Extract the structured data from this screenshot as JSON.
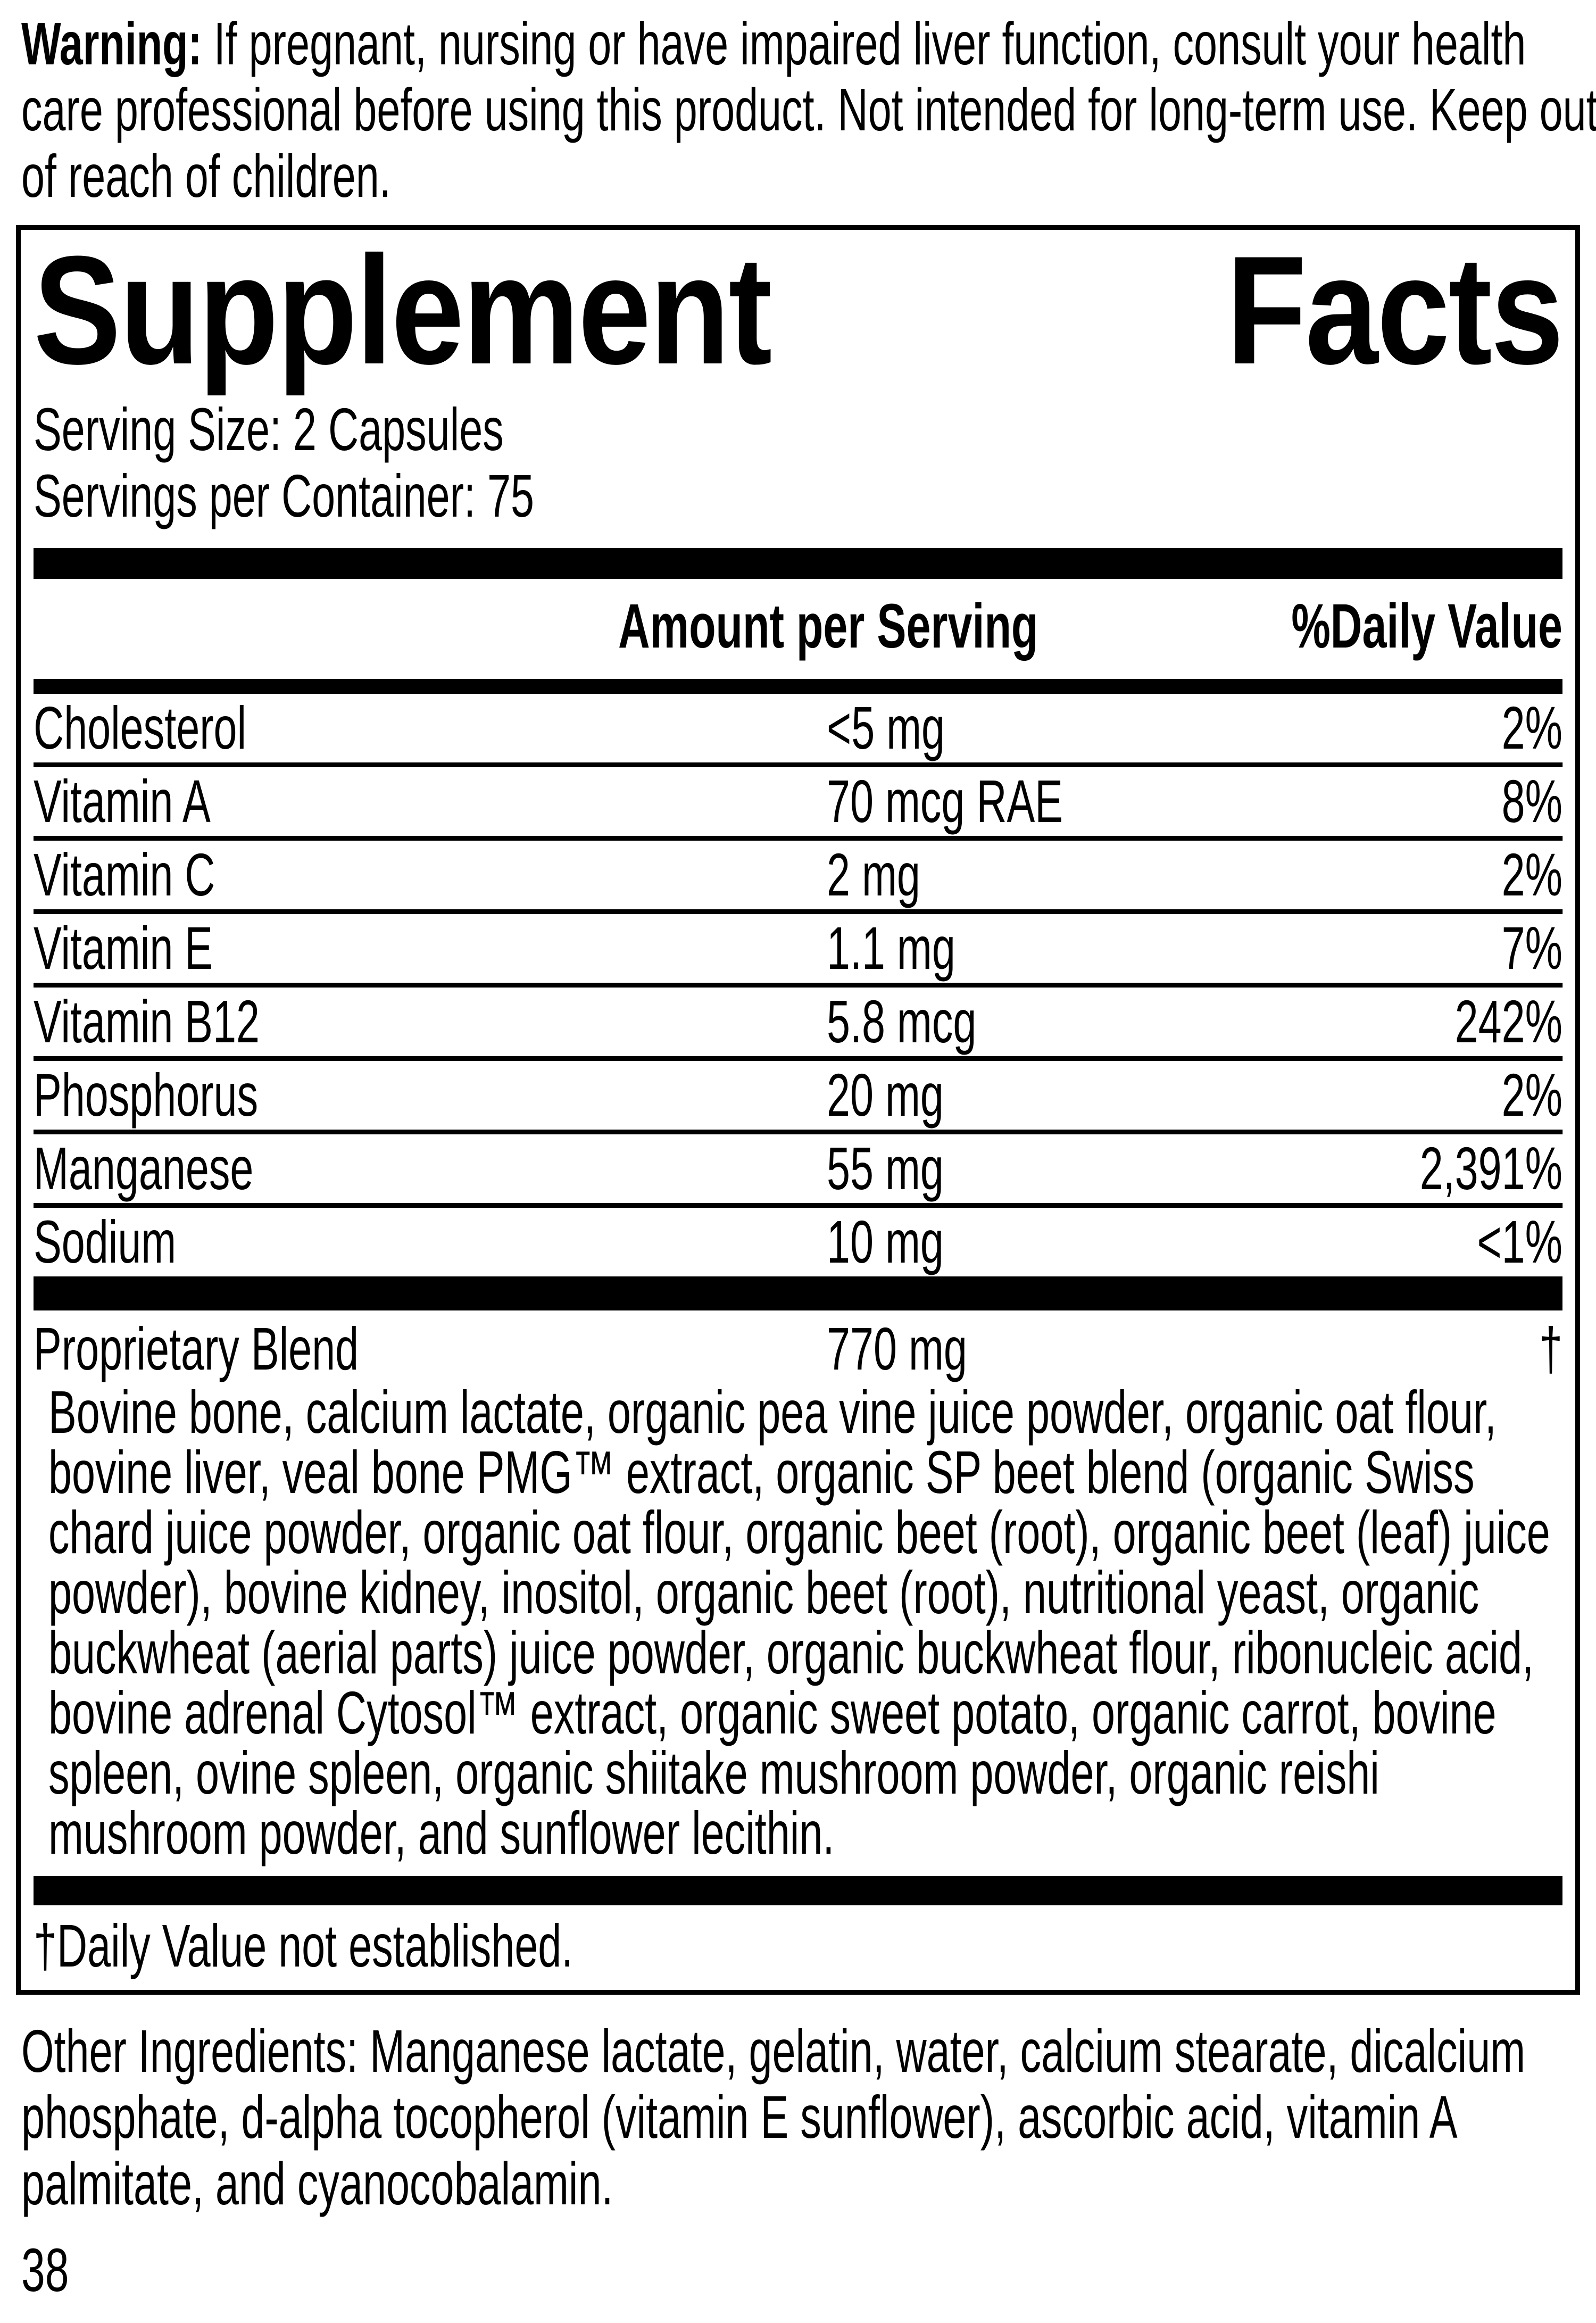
{
  "warning": {
    "label": "Warning:",
    "text": " If pregnant, nursing or have impaired liver function, consult your health care professional before using this product. Not intended for long-term use. Keep out of reach of children."
  },
  "panel": {
    "title": {
      "word1": "Supplement",
      "word2": "Facts"
    },
    "serving_size": "Serving Size: 2 Capsules",
    "servings_per_container": "Servings per Container: 75",
    "columns": {
      "amount": "Amount per Serving",
      "daily_value": "%Daily Value"
    },
    "rows": [
      {
        "name": "Cholesterol",
        "amount": "<5 mg",
        "dv": "2%"
      },
      {
        "name": "Vitamin A",
        "amount": "70 mcg RAE",
        "dv": "8%"
      },
      {
        "name": "Vitamin C",
        "amount": "2 mg",
        "dv": "2%"
      },
      {
        "name": "Vitamin E",
        "amount": "1.1 mg",
        "dv": "7%"
      },
      {
        "name": "Vitamin B12",
        "amount": "5.8 mcg",
        "dv": "242%"
      },
      {
        "name": "Phosphorus",
        "amount": "20 mg",
        "dv": "2%"
      },
      {
        "name": "Manganese",
        "amount": "55 mg",
        "dv": "2,391%"
      },
      {
        "name": "Sodium",
        "amount": "10 mg",
        "dv": "<1%"
      }
    ],
    "blend": {
      "name": "Proprietary Blend",
      "amount": "770 mg",
      "dv": "†",
      "description": "Bovine bone, calcium lactate, organic pea vine juice powder, organic oat flour, bovine liver, veal bone PMG™ extract, organic SP beet blend (organic Swiss chard juice powder, organic oat flour, organic beet (root), organic beet (leaf) juice powder), bovine kidney, inositol, organic beet (root), nutritional yeast, organic buckwheat (aerial parts) juice powder, organic buckwheat flour, ribonucleic acid, bovine adrenal Cytosol™ extract, organic sweet potato, organic carrot, bovine spleen, ovine spleen, organic shiitake mushroom powder, organic reishi mushroom powder, and sunflower lecithin."
    },
    "footnote": "†Daily Value not established."
  },
  "other_ingredients": "Other Ingredients: Manganese lactate, gelatin, water, calcium stearate, dicalcium phosphate, d-alpha tocopherol (vitamin E sunflower), ascorbic acid, vitamin A palmitate, and cyanocobalamin.",
  "page_number": "38",
  "colors": {
    "ink": "#000000",
    "paper": "#ffffff"
  }
}
